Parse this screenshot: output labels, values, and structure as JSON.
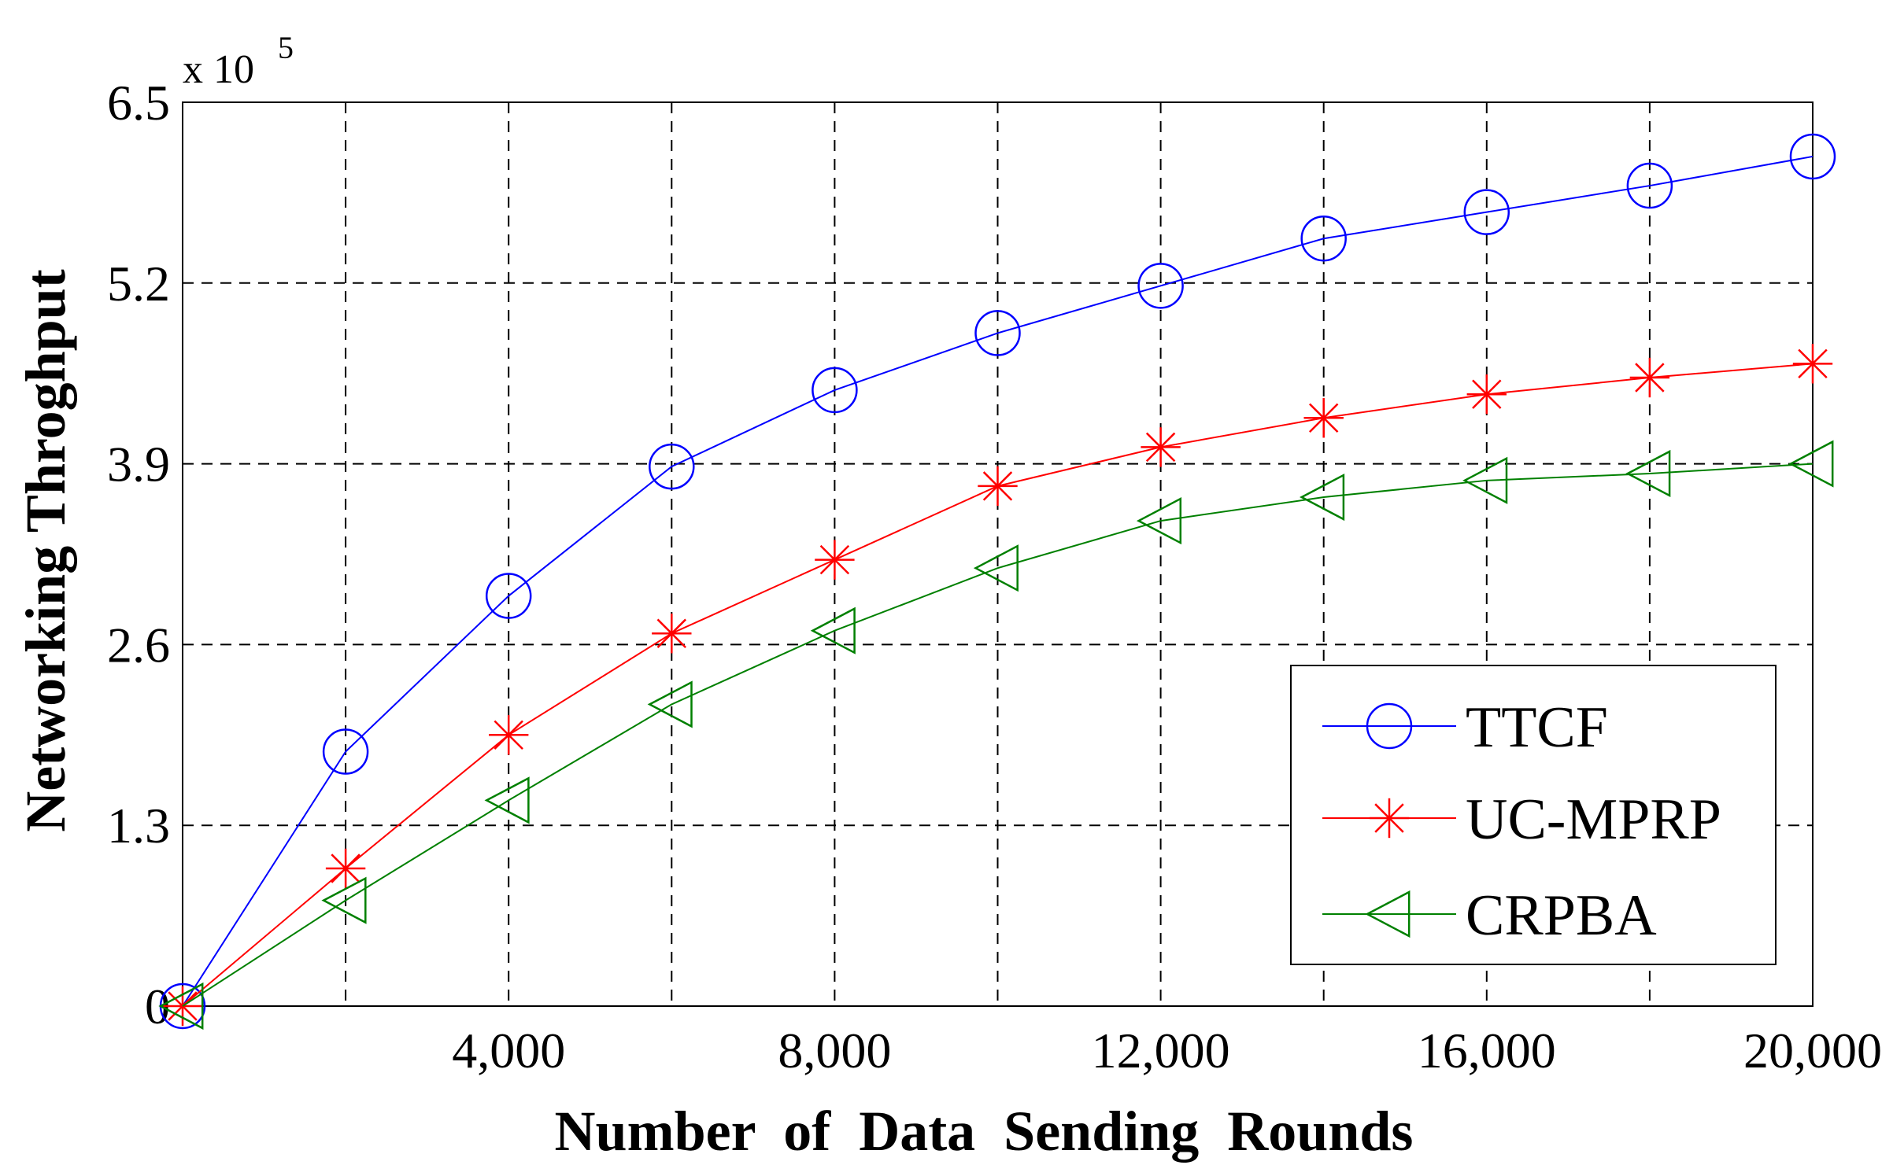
{
  "chart_data": {
    "type": "line",
    "title": "",
    "xlabel": "Number  of  Data  Sending  Rounds",
    "ylabel": "Networking Throghput",
    "y_multiplier_label": "x 10",
    "y_multiplier_exponent": "5",
    "xlim": [
      0,
      20000
    ],
    "ylim": [
      0,
      6.5
    ],
    "x_ticks": [
      0,
      2000,
      4000,
      6000,
      8000,
      10000,
      12000,
      14000,
      16000,
      18000,
      20000
    ],
    "x_tick_labels": [
      "",
      "",
      "4,000",
      "",
      "8,000",
      "",
      "12,000",
      "",
      "16,000",
      "",
      "20,000"
    ],
    "y_ticks": [
      0,
      1.3,
      2.6,
      3.9,
      5.2,
      6.5
    ],
    "y_tick_labels": [
      "0",
      "1.3",
      "2.6",
      "3.9",
      "5.2",
      "6.5"
    ],
    "grid": true,
    "legend_position": "bottom-right",
    "x": [
      0,
      2000,
      4000,
      6000,
      8000,
      10000,
      12000,
      14000,
      16000,
      18000,
      20000
    ],
    "series": [
      {
        "name": "TTCF",
        "color": "#0000ff",
        "marker": "circle",
        "values": [
          0,
          1.83,
          2.95,
          3.88,
          4.43,
          4.84,
          5.18,
          5.52,
          5.71,
          5.9,
          6.11
        ]
      },
      {
        "name": "UC-MPRP",
        "color": "#ff0000",
        "marker": "asterisk",
        "values": [
          0,
          0.99,
          1.95,
          2.68,
          3.21,
          3.74,
          4.02,
          4.23,
          4.4,
          4.52,
          4.62
        ]
      },
      {
        "name": "CRPBA",
        "color": "#008000",
        "marker": "triangle-left",
        "values": [
          0,
          0.76,
          1.48,
          2.17,
          2.7,
          3.15,
          3.49,
          3.66,
          3.78,
          3.83,
          3.9
        ]
      }
    ]
  }
}
